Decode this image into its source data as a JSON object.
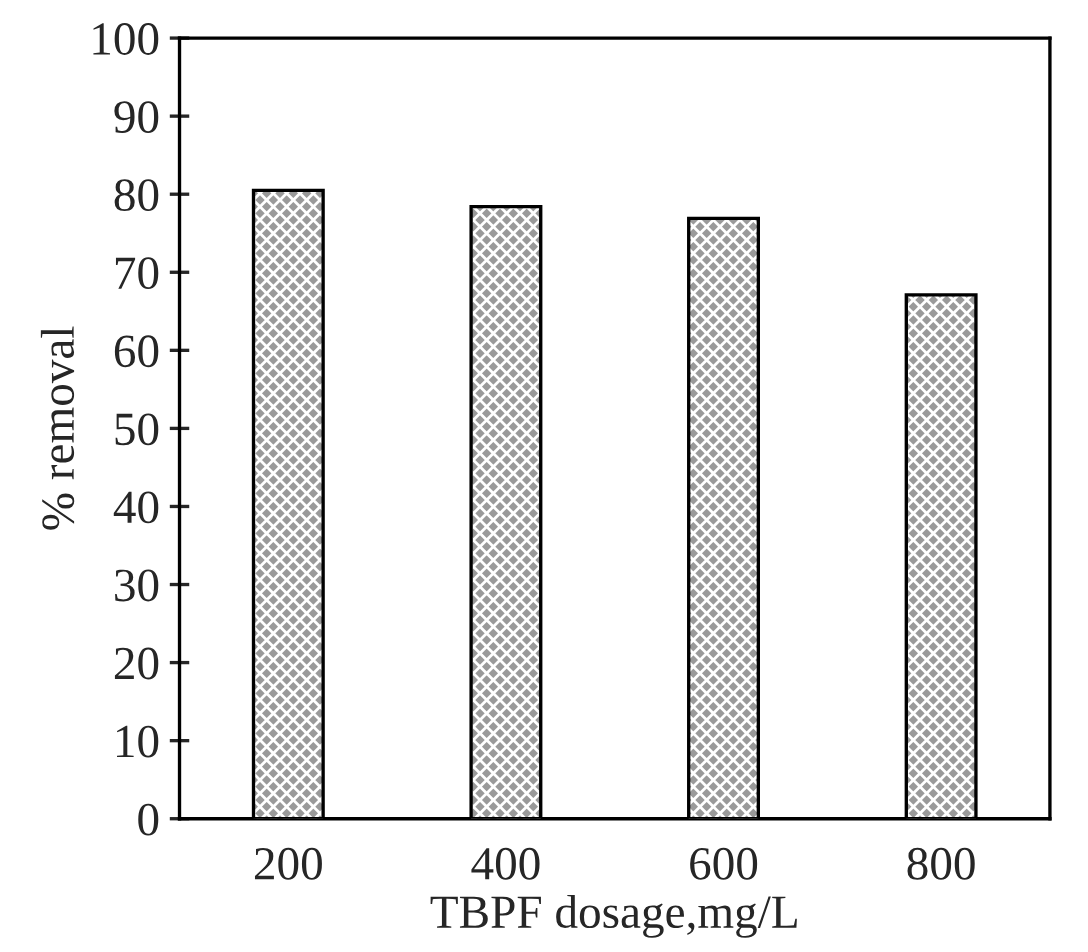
{
  "chart_data": {
    "type": "bar",
    "xlabel": "TBPF dosage,mg/L",
    "ylabel": "% removal",
    "categories": [
      "200",
      "400",
      "600",
      "800"
    ],
    "values": [
      80.5,
      78.4,
      76.9,
      67.1
    ],
    "ylim": [
      0,
      100
    ],
    "yticks": [
      0,
      10,
      20,
      30,
      40,
      50,
      60,
      70,
      80,
      90,
      100
    ],
    "grid": false
  }
}
